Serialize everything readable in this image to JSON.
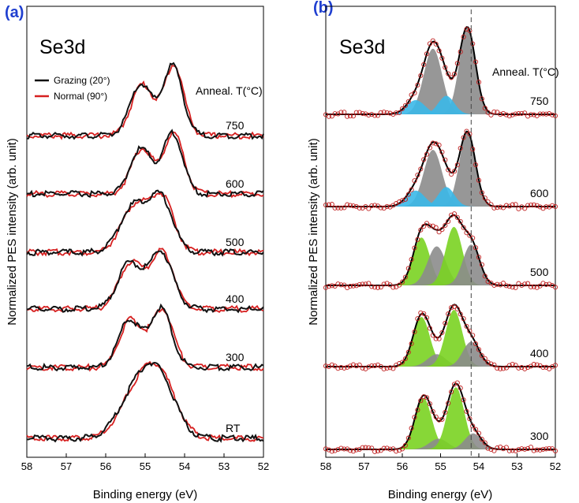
{
  "chart_data": [
    {
      "panel": "(a)",
      "type": "line",
      "title": "Se3d",
      "xlabel": "Binding energy (eV)",
      "ylabel": "Normalized PES intensity (arb. unit)",
      "xlim": [
        58,
        52
      ],
      "xticks": [
        58,
        57,
        56,
        55,
        54,
        53,
        52
      ],
      "legend": {
        "position": "top-left",
        "entries": [
          {
            "name": "Grazing (20°)",
            "color": "#111111"
          },
          {
            "name": "Normal (90°)",
            "color": "#d62020"
          }
        ]
      },
      "annotation_header": "Anneal. T(°C)",
      "spectra": [
        {
          "temp": "750",
          "baseline": 0.0,
          "peaks": [
            {
              "e": 55.1,
              "a": 1.35,
              "w": 0.28
            },
            {
              "e": 54.3,
              "a": 1.85,
              "w": 0.25
            }
          ]
        },
        {
          "temp": "600",
          "baseline": 0.0,
          "peaks": [
            {
              "e": 55.1,
              "a": 1.2,
              "w": 0.28
            },
            {
              "e": 54.3,
              "a": 1.6,
              "w": 0.25
            }
          ]
        },
        {
          "temp": "500",
          "baseline": 0.0,
          "peaks": [
            {
              "e": 55.3,
              "a": 1.2,
              "w": 0.34
            },
            {
              "e": 54.6,
              "a": 1.4,
              "w": 0.3
            }
          ]
        },
        {
          "temp": "400",
          "baseline": 0.0,
          "peaks": [
            {
              "e": 55.4,
              "a": 1.2,
              "w": 0.3
            },
            {
              "e": 54.6,
              "a": 1.5,
              "w": 0.3
            }
          ]
        },
        {
          "temp": "300",
          "baseline": 0.0,
          "peaks": [
            {
              "e": 55.4,
              "a": 1.25,
              "w": 0.28
            },
            {
              "e": 54.6,
              "a": 1.55,
              "w": 0.28
            }
          ]
        },
        {
          "temp": "RT",
          "baseline": 0.0,
          "peaks": [
            {
              "e": 55.2,
              "a": 1.25,
              "w": 0.45
            },
            {
              "e": 54.6,
              "a": 1.3,
              "w": 0.4
            }
          ]
        }
      ]
    },
    {
      "panel": "(b)",
      "type": "line",
      "title": "Se3d",
      "xlabel": "Binding energy (eV)",
      "ylabel": "Normalized PES intensity (arb. unit)",
      "xlim": [
        58,
        52
      ],
      "xticks": [
        58,
        57,
        56,
        55,
        54,
        53,
        52
      ],
      "reference_line_eV": 54.2,
      "annotation_header": "Anneal. T(°C)",
      "component_colors": {
        "gray": "#8c8c8c",
        "blue": "#3bb8e8",
        "green": "#7ad321",
        "fit": "#000000",
        "data": "#c02020"
      },
      "spectra": [
        {
          "temp": "750",
          "components": [
            {
              "color": "gray",
              "e": 55.2,
              "a": 1.85,
              "w": 0.24
            },
            {
              "color": "gray",
              "e": 54.3,
              "a": 2.45,
              "w": 0.21
            },
            {
              "color": "blue",
              "e": 55.65,
              "a": 0.4,
              "w": 0.24
            },
            {
              "color": "blue",
              "e": 54.85,
              "a": 0.52,
              "w": 0.21
            }
          ]
        },
        {
          "temp": "600",
          "components": [
            {
              "color": "gray",
              "e": 55.2,
              "a": 1.6,
              "w": 0.24
            },
            {
              "color": "gray",
              "e": 54.3,
              "a": 2.1,
              "w": 0.21
            },
            {
              "color": "blue",
              "e": 55.65,
              "a": 0.45,
              "w": 0.24
            },
            {
              "color": "blue",
              "e": 54.85,
              "a": 0.55,
              "w": 0.21
            }
          ]
        },
        {
          "temp": "500",
          "components": [
            {
              "color": "green",
              "e": 55.5,
              "a": 1.35,
              "w": 0.22
            },
            {
              "color": "gray",
              "e": 55.1,
              "a": 1.1,
              "w": 0.24
            },
            {
              "color": "green",
              "e": 54.65,
              "a": 1.65,
              "w": 0.22
            },
            {
              "color": "gray",
              "e": 54.2,
              "a": 1.15,
              "w": 0.22
            }
          ]
        },
        {
          "temp": "400",
          "components": [
            {
              "color": "green",
              "e": 55.5,
              "a": 1.4,
              "w": 0.22
            },
            {
              "color": "gray",
              "e": 55.1,
              "a": 0.35,
              "w": 0.24
            },
            {
              "color": "green",
              "e": 54.65,
              "a": 1.6,
              "w": 0.22
            },
            {
              "color": "gray",
              "e": 54.2,
              "a": 0.7,
              "w": 0.22
            }
          ]
        },
        {
          "temp": "300",
          "components": [
            {
              "color": "green",
              "e": 55.45,
              "a": 1.45,
              "w": 0.22
            },
            {
              "color": "gray",
              "e": 55.05,
              "a": 0.3,
              "w": 0.24
            },
            {
              "color": "green",
              "e": 54.6,
              "a": 1.75,
              "w": 0.22
            },
            {
              "color": "gray",
              "e": 54.15,
              "a": 0.45,
              "w": 0.22
            }
          ]
        }
      ]
    }
  ]
}
